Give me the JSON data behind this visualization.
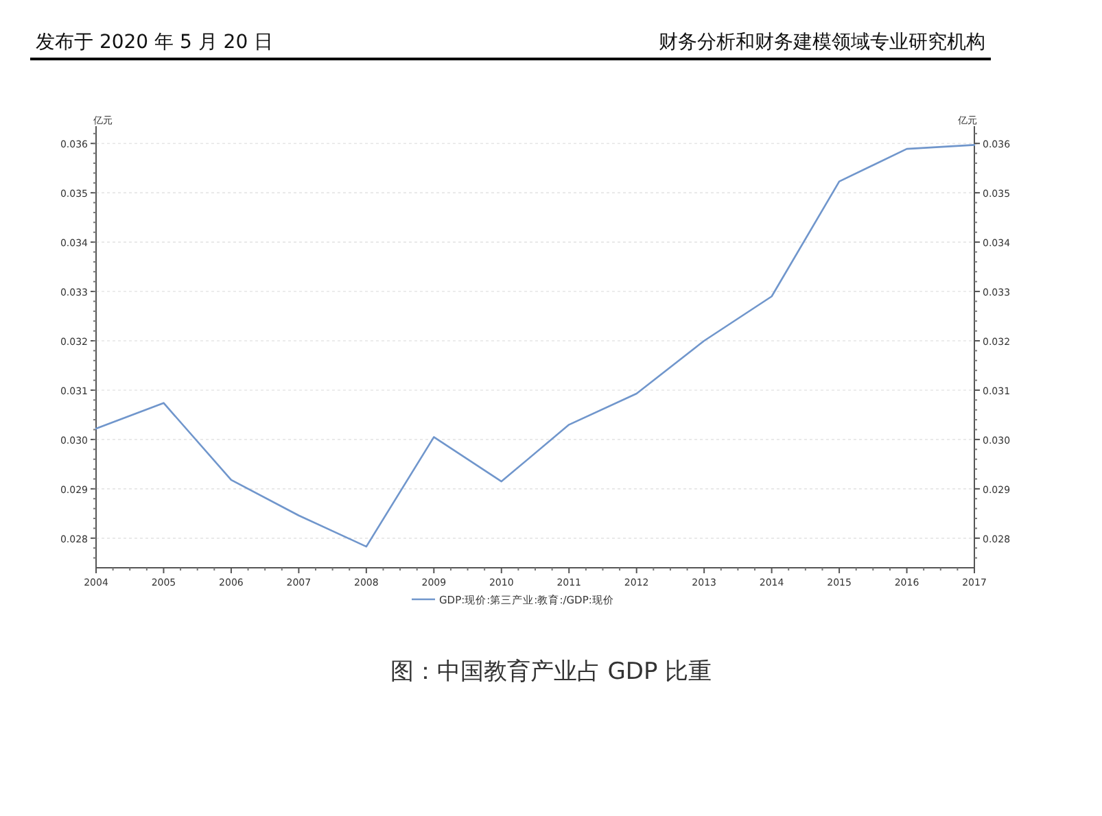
{
  "chart_data": {
    "type": "line",
    "title": "图：中国教育产业占 GDP 比重",
    "annotations": [
      "发布于 2020 年 5 月 20 日",
      "财务分析和财务建模领域专业研究机构"
    ],
    "ylabel": "亿元",
    "y2label": "亿元",
    "x": [
      2004,
      2005,
      2006,
      2007,
      2008,
      2009,
      2010,
      2011,
      2012,
      2013,
      2014,
      2015,
      2016,
      2017
    ],
    "series": [
      {
        "name": "GDP:现价:第三产业:教育:/GDP:现价",
        "color": "#7096cc",
        "values": [
          0.03022,
          0.03074,
          0.02918,
          0.02846,
          0.02783,
          0.03005,
          0.02915,
          0.0303,
          0.03093,
          0.032,
          0.0329,
          0.03523,
          0.03589,
          0.03597
        ]
      }
    ],
    "xlim": [
      2004,
      2017
    ],
    "xticks": [
      2004,
      2005,
      2006,
      2007,
      2008,
      2009,
      2010,
      2011,
      2012,
      2013,
      2014,
      2015,
      2016,
      2017
    ],
    "ylim": [
      0.0274,
      0.03635
    ],
    "yticks": [
      {
        "value": 0.028,
        "label": "0.028"
      },
      {
        "value": 0.029,
        "label": "0.029"
      },
      {
        "value": 0.03,
        "label": "0.030"
      },
      {
        "value": 0.031,
        "label": "0.031"
      },
      {
        "value": 0.032,
        "label": "0.032"
      },
      {
        "value": 0.033,
        "label": "0.033"
      },
      {
        "value": 0.034,
        "label": "0.034"
      },
      {
        "value": 0.035,
        "label": "0.035"
      },
      {
        "value": 0.036,
        "label": "0.036"
      }
    ],
    "y2lim": [
      0.0274,
      0.03635
    ],
    "y2ticks": [
      {
        "value": 0.028,
        "label": "0.028"
      },
      {
        "value": 0.029,
        "label": "0.029"
      },
      {
        "value": 0.03,
        "label": "0.030"
      },
      {
        "value": 0.031,
        "label": "0.031"
      },
      {
        "value": 0.032,
        "label": "0.032"
      },
      {
        "value": 0.033,
        "label": "0.033"
      },
      {
        "value": 0.034,
        "label": "0.034"
      },
      {
        "value": 0.035,
        "label": "0.035"
      },
      {
        "value": 0.036,
        "label": "0.036"
      }
    ],
    "grid": "y",
    "legend": "bottom",
    "marker": "none",
    "line_style": "solid"
  }
}
